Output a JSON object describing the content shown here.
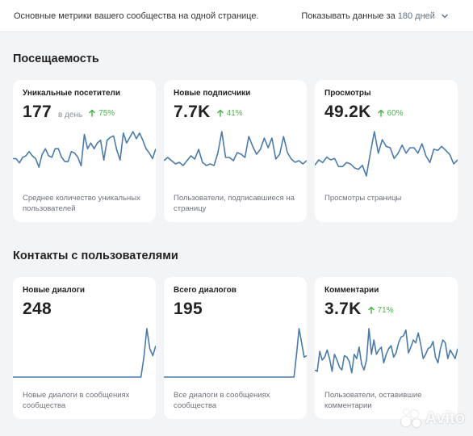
{
  "header": {
    "description": "Основные метрики вашего сообщества на одной странице.",
    "period_prefix": "Показывать данные за",
    "period_value": "180 дней"
  },
  "sections": [
    {
      "title": "Посещаемость",
      "cards": [
        {
          "label": "Уникальные посетители",
          "value": "177",
          "per_day": "в день",
          "delta": "75%",
          "description": "Среднее количество уникальных пользователей",
          "series": [
            15,
            15,
            12,
            16,
            17,
            20,
            17,
            15,
            9,
            18,
            22,
            17,
            16,
            22,
            22,
            16,
            13,
            13,
            20,
            19,
            16,
            10,
            32,
            22,
            26,
            22,
            26,
            28,
            14,
            28,
            30,
            31,
            21,
            14,
            33,
            26,
            30,
            34,
            29,
            33,
            28,
            22,
            19,
            15,
            22
          ]
        },
        {
          "label": "Новые подписчики",
          "value": "7.7K",
          "delta": "41%",
          "description": "Пользователи, подписавшиеся на страницу",
          "series": [
            12,
            14,
            12,
            10,
            11,
            9,
            12,
            15,
            13,
            19,
            11,
            9,
            10,
            9,
            17,
            30,
            14,
            14,
            12,
            17,
            16,
            14,
            27,
            21,
            16,
            19,
            26,
            20,
            26,
            13,
            16,
            27,
            17,
            13,
            11,
            12,
            10,
            12
          ]
        },
        {
          "label": "Просмотры",
          "value": "49.2K",
          "delta": "60%",
          "description": "Просмотры страницы",
          "series": [
            11,
            15,
            13,
            17,
            15,
            16,
            10,
            10,
            13,
            12,
            9,
            8,
            11,
            3,
            20,
            36,
            20,
            30,
            25,
            24,
            16,
            20,
            26,
            20,
            24,
            24,
            20,
            27,
            18,
            13,
            23,
            22,
            25,
            22,
            19,
            12,
            15
          ]
        }
      ]
    },
    {
      "title": "Контакты с пользователями",
      "cards": [
        {
          "label": "Новые диалоги",
          "value": "248",
          "description": "Новые диалоги в сообщениях сообщества",
          "series": [
            0,
            0,
            0,
            0,
            0,
            0,
            0,
            0,
            0,
            0,
            0,
            0,
            0,
            0,
            0,
            0,
            0,
            0,
            0,
            0,
            0,
            0,
            0,
            0,
            0,
            0,
            0,
            0,
            0,
            0,
            0,
            0,
            0,
            0,
            0,
            0,
            0,
            0,
            0,
            0,
            0,
            0,
            0,
            0,
            14,
            34,
            20,
            15,
            22
          ]
        },
        {
          "label": "Всего диалогов",
          "value": "195",
          "description": "Все диалоги в сообщениях сообщества",
          "series": [
            0,
            0,
            0,
            0,
            0,
            0,
            0,
            0,
            0,
            0,
            0,
            0,
            0,
            0,
            0,
            0,
            0,
            0,
            0,
            0,
            0,
            0,
            0,
            0,
            0,
            0,
            0,
            0,
            0,
            0,
            0,
            0,
            0,
            0,
            0,
            0,
            0,
            0,
            0,
            0,
            0,
            0,
            0,
            0,
            0,
            0,
            0,
            0,
            0,
            0,
            0,
            0,
            16,
            34,
            24,
            14,
            15
          ]
        },
        {
          "label": "Комментарии",
          "value": "3.7K",
          "delta": "71%",
          "description": "Пользователи, оставившие комментарии",
          "series": [
            5,
            4,
            18,
            12,
            14,
            19,
            13,
            4,
            16,
            12,
            7,
            5,
            15,
            14,
            11,
            3,
            16,
            13,
            21,
            9,
            5,
            12,
            34,
            16,
            26,
            16,
            19,
            21,
            10,
            16,
            20,
            22,
            14,
            17,
            24,
            28,
            29,
            33,
            17,
            21,
            26,
            24,
            31,
            23,
            13,
            16,
            20,
            21,
            25,
            14,
            10,
            20,
            26,
            24,
            13,
            19,
            16,
            13,
            20
          ]
        }
      ]
    }
  ],
  "watermark": {
    "text": "Avito"
  },
  "colors": {
    "line": "#4a7bab",
    "baseline": "#e8ecf1",
    "positive": "#4bb34b",
    "period": "#5d6f88"
  }
}
